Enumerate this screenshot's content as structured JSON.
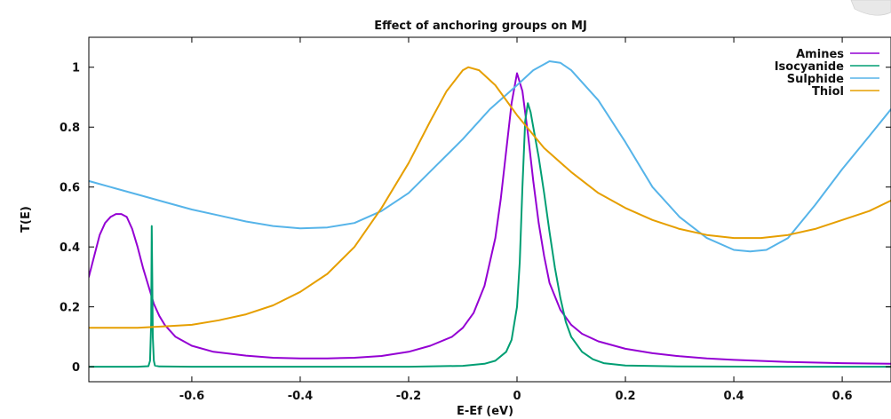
{
  "chart_data": {
    "type": "line",
    "title": "Effect of anchoring groups on MJ",
    "xlabel": "E-Ef (eV)",
    "ylabel": "T(E)",
    "xlim": [
      -0.79,
      0.69
    ],
    "ylim": [
      -0.05,
      1.1
    ],
    "xticks": [
      -0.6,
      -0.4,
      -0.2,
      0,
      0.2,
      0.4,
      0.6
    ],
    "yticks": [
      0,
      0.2,
      0.4,
      0.6,
      0.8,
      1
    ],
    "grid": false,
    "legend_position": "top-right",
    "series": [
      {
        "name": "Amines",
        "color": "#9400d3",
        "points": [
          [
            -0.79,
            0.3
          ],
          [
            -0.78,
            0.37
          ],
          [
            -0.77,
            0.44
          ],
          [
            -0.76,
            0.48
          ],
          [
            -0.75,
            0.5
          ],
          [
            -0.74,
            0.51
          ],
          [
            -0.73,
            0.51
          ],
          [
            -0.72,
            0.5
          ],
          [
            -0.71,
            0.46
          ],
          [
            -0.7,
            0.4
          ],
          [
            -0.69,
            0.33
          ],
          [
            -0.68,
            0.27
          ],
          [
            -0.67,
            0.21
          ],
          [
            -0.66,
            0.17
          ],
          [
            -0.65,
            0.14
          ],
          [
            -0.63,
            0.1
          ],
          [
            -0.6,
            0.07
          ],
          [
            -0.56,
            0.05
          ],
          [
            -0.5,
            0.037
          ],
          [
            -0.45,
            0.03
          ],
          [
            -0.4,
            0.028
          ],
          [
            -0.35,
            0.028
          ],
          [
            -0.3,
            0.03
          ],
          [
            -0.25,
            0.036
          ],
          [
            -0.2,
            0.05
          ],
          [
            -0.16,
            0.07
          ],
          [
            -0.12,
            0.1
          ],
          [
            -0.1,
            0.13
          ],
          [
            -0.08,
            0.18
          ],
          [
            -0.06,
            0.27
          ],
          [
            -0.04,
            0.43
          ],
          [
            -0.03,
            0.56
          ],
          [
            -0.02,
            0.72
          ],
          [
            -0.01,
            0.88
          ],
          [
            0.0,
            0.98
          ],
          [
            0.01,
            0.92
          ],
          [
            0.02,
            0.78
          ],
          [
            0.03,
            0.62
          ],
          [
            0.04,
            0.48
          ],
          [
            0.05,
            0.37
          ],
          [
            0.06,
            0.28
          ],
          [
            0.08,
            0.19
          ],
          [
            0.1,
            0.14
          ],
          [
            0.12,
            0.11
          ],
          [
            0.15,
            0.085
          ],
          [
            0.2,
            0.06
          ],
          [
            0.25,
            0.045
          ],
          [
            0.3,
            0.035
          ],
          [
            0.35,
            0.028
          ],
          [
            0.4,
            0.023
          ],
          [
            0.5,
            0.016
          ],
          [
            0.6,
            0.012
          ],
          [
            0.69,
            0.01
          ]
        ]
      },
      {
        "name": "Isocyanide",
        "color": "#009e73",
        "points": [
          [
            -0.79,
            0.0
          ],
          [
            -0.7,
            0.0
          ],
          [
            -0.68,
            0.002
          ],
          [
            -0.677,
            0.02
          ],
          [
            -0.675,
            0.15
          ],
          [
            -0.674,
            0.47
          ],
          [
            -0.673,
            0.3
          ],
          [
            -0.672,
            0.1
          ],
          [
            -0.67,
            0.02
          ],
          [
            -0.668,
            0.004
          ],
          [
            -0.66,
            0.001
          ],
          [
            -0.6,
            0.0
          ],
          [
            -0.4,
            0.0
          ],
          [
            -0.2,
            0.0
          ],
          [
            -0.1,
            0.003
          ],
          [
            -0.06,
            0.01
          ],
          [
            -0.04,
            0.02
          ],
          [
            -0.02,
            0.05
          ],
          [
            -0.01,
            0.09
          ],
          [
            0.0,
            0.2
          ],
          [
            0.005,
            0.35
          ],
          [
            0.01,
            0.6
          ],
          [
            0.015,
            0.82
          ],
          [
            0.02,
            0.88
          ],
          [
            0.025,
            0.85
          ],
          [
            0.03,
            0.8
          ],
          [
            0.04,
            0.7
          ],
          [
            0.05,
            0.58
          ],
          [
            0.06,
            0.45
          ],
          [
            0.07,
            0.33
          ],
          [
            0.08,
            0.23
          ],
          [
            0.09,
            0.15
          ],
          [
            0.1,
            0.1
          ],
          [
            0.12,
            0.05
          ],
          [
            0.14,
            0.025
          ],
          [
            0.16,
            0.012
          ],
          [
            0.2,
            0.004
          ],
          [
            0.3,
            0.001
          ],
          [
            0.5,
            0.0
          ],
          [
            0.69,
            0.0
          ]
        ]
      },
      {
        "name": "Sulphide",
        "color": "#56b4e9",
        "points": [
          [
            -0.79,
            0.62
          ],
          [
            -0.75,
            0.6
          ],
          [
            -0.7,
            0.575
          ],
          [
            -0.65,
            0.55
          ],
          [
            -0.6,
            0.525
          ],
          [
            -0.55,
            0.505
          ],
          [
            -0.5,
            0.485
          ],
          [
            -0.45,
            0.47
          ],
          [
            -0.4,
            0.462
          ],
          [
            -0.35,
            0.465
          ],
          [
            -0.3,
            0.48
          ],
          [
            -0.25,
            0.52
          ],
          [
            -0.2,
            0.58
          ],
          [
            -0.15,
            0.67
          ],
          [
            -0.1,
            0.76
          ],
          [
            -0.05,
            0.86
          ],
          [
            0.0,
            0.94
          ],
          [
            0.03,
            0.99
          ],
          [
            0.06,
            1.02
          ],
          [
            0.08,
            1.015
          ],
          [
            0.1,
            0.99
          ],
          [
            0.15,
            0.89
          ],
          [
            0.2,
            0.75
          ],
          [
            0.25,
            0.6
          ],
          [
            0.3,
            0.5
          ],
          [
            0.35,
            0.43
          ],
          [
            0.4,
            0.39
          ],
          [
            0.43,
            0.385
          ],
          [
            0.46,
            0.39
          ],
          [
            0.5,
            0.43
          ],
          [
            0.55,
            0.54
          ],
          [
            0.6,
            0.66
          ],
          [
            0.65,
            0.77
          ],
          [
            0.69,
            0.86
          ]
        ]
      },
      {
        "name": "Thiol",
        "color": "#e69f00",
        "points": [
          [
            -0.79,
            0.13
          ],
          [
            -0.7,
            0.13
          ],
          [
            -0.65,
            0.135
          ],
          [
            -0.6,
            0.14
          ],
          [
            -0.55,
            0.155
          ],
          [
            -0.5,
            0.175
          ],
          [
            -0.45,
            0.205
          ],
          [
            -0.4,
            0.25
          ],
          [
            -0.35,
            0.31
          ],
          [
            -0.3,
            0.4
          ],
          [
            -0.25,
            0.53
          ],
          [
            -0.2,
            0.68
          ],
          [
            -0.16,
            0.82
          ],
          [
            -0.13,
            0.92
          ],
          [
            -0.1,
            0.99
          ],
          [
            -0.09,
            1.0
          ],
          [
            -0.07,
            0.99
          ],
          [
            -0.04,
            0.94
          ],
          [
            0.0,
            0.84
          ],
          [
            0.05,
            0.73
          ],
          [
            0.1,
            0.65
          ],
          [
            0.15,
            0.58
          ],
          [
            0.2,
            0.53
          ],
          [
            0.25,
            0.49
          ],
          [
            0.3,
            0.46
          ],
          [
            0.35,
            0.44
          ],
          [
            0.4,
            0.43
          ],
          [
            0.45,
            0.43
          ],
          [
            0.5,
            0.44
          ],
          [
            0.55,
            0.46
          ],
          [
            0.6,
            0.49
          ],
          [
            0.65,
            0.52
          ],
          [
            0.69,
            0.555
          ]
        ]
      }
    ]
  }
}
